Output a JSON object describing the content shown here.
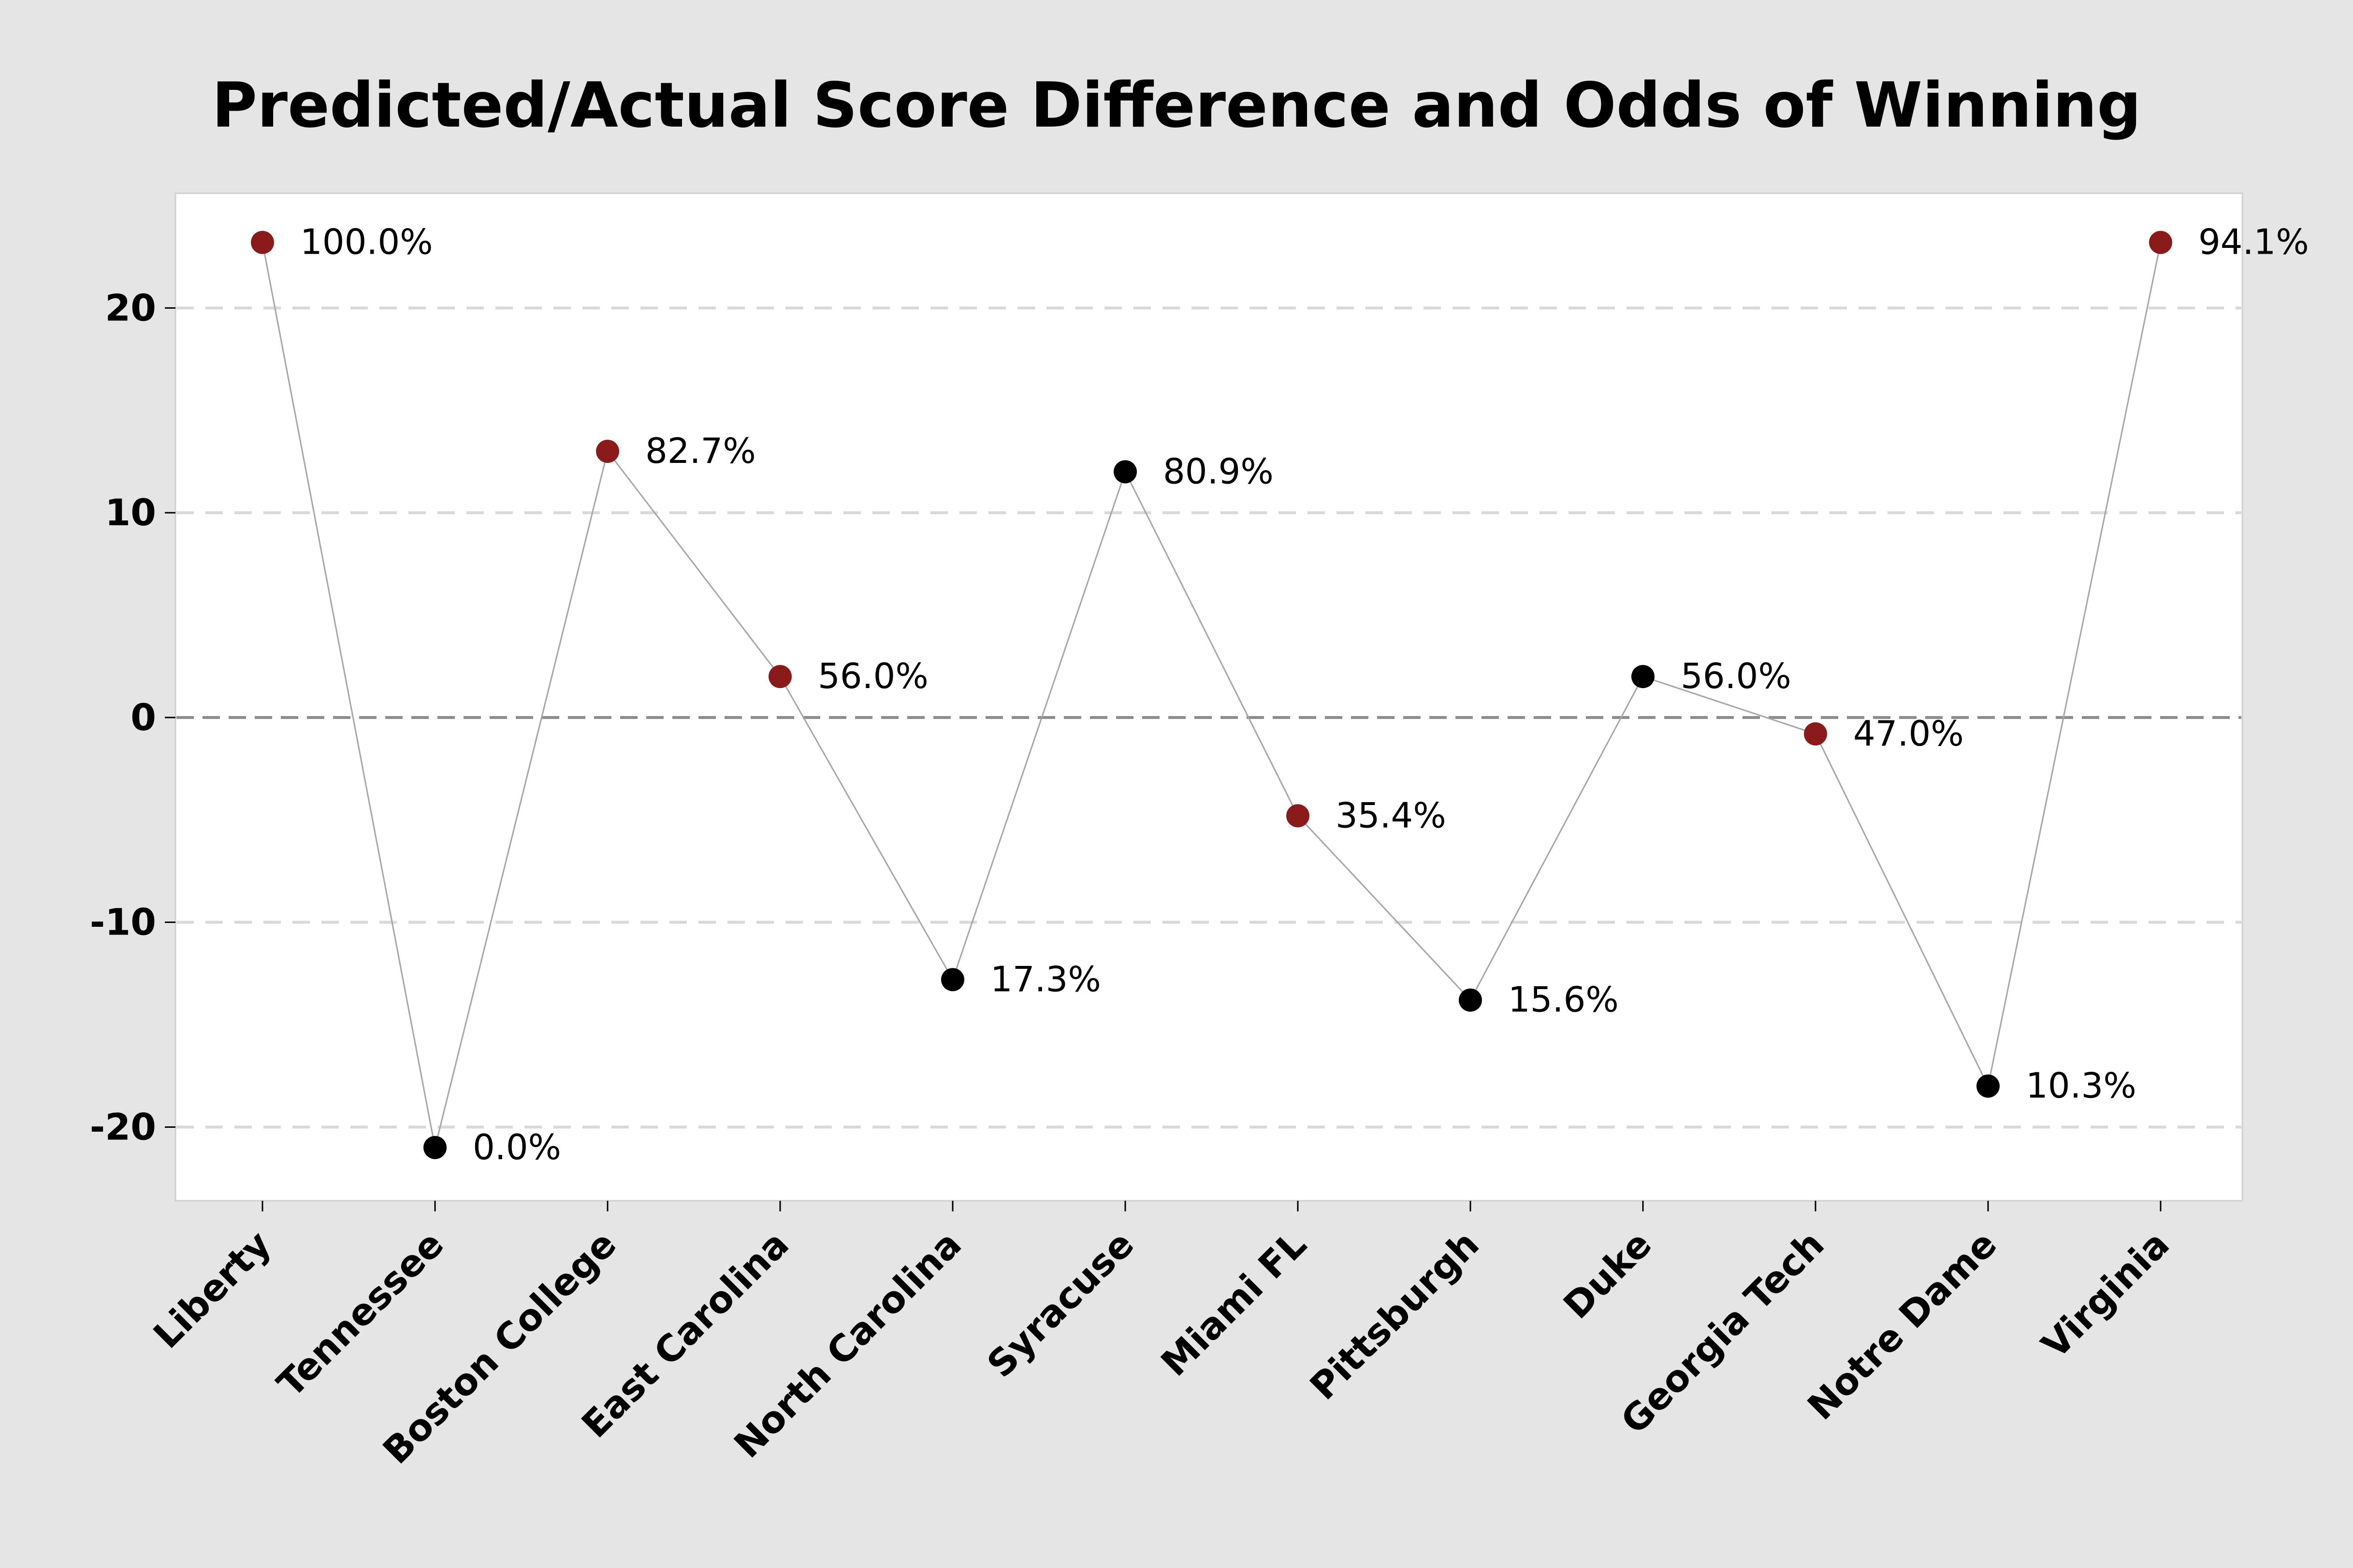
{
  "chart_data": {
    "type": "scatter",
    "title": "Predicted/Actual Score Difference and Odds of Winning",
    "categories": [
      "Liberty",
      "Tennessee",
      "Boston College",
      "East Carolina",
      "North Carolina",
      "Syracuse",
      "Miami FL",
      "Pittsburgh",
      "Duke",
      "Georgia Tech",
      "Notre Dame",
      "Virginia"
    ],
    "values": [
      23.2,
      -21,
      13,
      2,
      -12.8,
      12,
      -4.8,
      -13.8,
      2,
      -0.8,
      -18,
      23.2
    ],
    "labels": [
      "100.0%",
      "0.0%",
      "82.7%",
      "56.0%",
      "17.3%",
      "80.9%",
      "35.4%",
      "15.6%",
      "56.0%",
      "47.0%",
      "10.3%",
      "94.1%"
    ],
    "point_colors": [
      "#8b1a1a",
      "#000000",
      "#8b1a1a",
      "#8b1a1a",
      "#000000",
      "#000000",
      "#8b1a1a",
      "#000000",
      "#000000",
      "#8b1a1a",
      "#000000",
      "#8b1a1a"
    ],
    "ylim": [
      -23.6,
      25.6
    ],
    "yticks": [
      -20,
      -10,
      0,
      10,
      20
    ],
    "xlabel": "",
    "ylabel": "",
    "connect_points": true,
    "grid": "horizontal dashed",
    "reference_line_y": 0,
    "colors": {
      "background": "#e5e5e5",
      "plot_background": "#ffffff",
      "highlight_point": "#8b1a1a",
      "normal_point": "#000000",
      "connector_line": "#a6a6a6",
      "gridline": "#d9d9d9",
      "zero_line": "#8c8c8c"
    }
  }
}
